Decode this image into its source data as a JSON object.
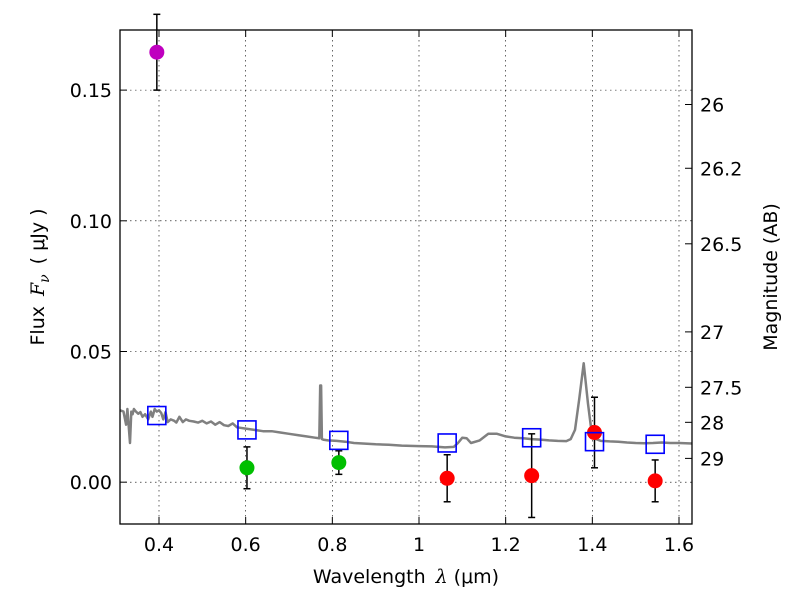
{
  "chart_data": {
    "type": "scatter",
    "xlabel_text": "Wavelength",
    "xlabel_symbol": "λ",
    "xlabel_unit": "(μm)",
    "ylabel_text": "Flux",
    "ylabel_symbol": "F",
    "ylabel_symbol_sub": "ν",
    "ylabel_unit": "( μJy )",
    "y2label": "Magnitude (AB)",
    "xlim": [
      0.31,
      1.63
    ],
    "ylim": [
      -0.016,
      0.173
    ],
    "grid": true,
    "x_ticks": [
      0.4,
      0.6,
      0.8,
      1.0,
      1.2,
      1.4,
      1.6
    ],
    "x_tick_labels": [
      "0.4",
      "0.6",
      "0.8",
      "1",
      "1.2",
      "1.4",
      "1.6"
    ],
    "y_ticks": [
      0.0,
      0.05,
      0.1,
      0.15
    ],
    "y_tick_labels": [
      "0.00",
      "0.05",
      "0.10",
      "0.15"
    ],
    "y2_ticks": [
      {
        "label": "26",
        "flux": 0.1445
      },
      {
        "label": "26.2",
        "flux": 0.1201
      },
      {
        "label": "26.5",
        "flux": 0.0912
      },
      {
        "label": "27",
        "flux": 0.0575
      },
      {
        "label": "27.5",
        "flux": 0.0363
      },
      {
        "label": "28",
        "flux": 0.0229
      },
      {
        "label": "29",
        "flux": 0.0091
      }
    ],
    "colors": {
      "model": "#808080",
      "magenta": "#bf00bf",
      "green": "#00bf00",
      "red": "#ff0000",
      "model_photometry": "#0000ff",
      "errorbar": "#000000"
    },
    "series": [
      {
        "color_key": "magenta",
        "marker": "circle",
        "points": [
          {
            "x": 0.395,
            "y": 0.1645,
            "err": 0.0145
          }
        ]
      },
      {
        "color_key": "green",
        "marker": "circle",
        "points": [
          {
            "x": 0.603,
            "y": 0.0055,
            "err": 0.008
          },
          {
            "x": 0.815,
            "y": 0.0075,
            "err": 0.0045
          }
        ]
      },
      {
        "color_key": "red",
        "marker": "circle",
        "points": [
          {
            "x": 1.065,
            "y": 0.0015,
            "err": 0.009
          },
          {
            "x": 1.26,
            "y": 0.0025,
            "err": 0.016
          },
          {
            "x": 1.405,
            "y": 0.019,
            "err": 0.0135
          },
          {
            "x": 1.545,
            "y": 0.0005,
            "err": 0.008
          }
        ]
      },
      {
        "color_key": "model_photometry",
        "marker": "open-square",
        "points": [
          {
            "x": 0.395,
            "y": 0.0255
          },
          {
            "x": 0.603,
            "y": 0.02
          },
          {
            "x": 0.815,
            "y": 0.016
          },
          {
            "x": 1.065,
            "y": 0.015
          },
          {
            "x": 1.26,
            "y": 0.017
          },
          {
            "x": 1.405,
            "y": 0.0155
          },
          {
            "x": 1.545,
            "y": 0.0145
          }
        ]
      }
    ],
    "model_spectrum": {
      "color_key": "model",
      "x": [
        0.31,
        0.318,
        0.324,
        0.327,
        0.33,
        0.333,
        0.336,
        0.339,
        0.342,
        0.347,
        0.352,
        0.357,
        0.362,
        0.368,
        0.375,
        0.381,
        0.385,
        0.39,
        0.395,
        0.4,
        0.405,
        0.41,
        0.415,
        0.42,
        0.427,
        0.435,
        0.44,
        0.447,
        0.455,
        0.462,
        0.47,
        0.48,
        0.49,
        0.5,
        0.51,
        0.52,
        0.53,
        0.54,
        0.55,
        0.56,
        0.57,
        0.58,
        0.6,
        0.62,
        0.64,
        0.66,
        0.68,
        0.7,
        0.72,
        0.74,
        0.76,
        0.77,
        0.772,
        0.774,
        0.776,
        0.78,
        0.79,
        0.81,
        0.83,
        0.85,
        0.87,
        0.9,
        0.93,
        0.96,
        1.0,
        1.03,
        1.06,
        1.08,
        1.09,
        1.1,
        1.11,
        1.12,
        1.14,
        1.16,
        1.18,
        1.2,
        1.22,
        1.24,
        1.26,
        1.28,
        1.3,
        1.32,
        1.34,
        1.35,
        1.36,
        1.37,
        1.38,
        1.39,
        1.4,
        1.42,
        1.44,
        1.46,
        1.48,
        1.5,
        1.52,
        1.54,
        1.56,
        1.58,
        1.6,
        1.63
      ],
      "y": [
        0.0275,
        0.027,
        0.022,
        0.028,
        0.0215,
        0.015,
        0.027,
        0.026,
        0.028,
        0.027,
        0.0262,
        0.0268,
        0.025,
        0.026,
        0.024,
        0.027,
        0.025,
        0.028,
        0.027,
        0.0275,
        0.0265,
        0.024,
        0.0268,
        0.023,
        0.024,
        0.0235,
        0.0228,
        0.025,
        0.023,
        0.024,
        0.0235,
        0.0232,
        0.0228,
        0.0235,
        0.0225,
        0.0232,
        0.022,
        0.023,
        0.0218,
        0.0215,
        0.0225,
        0.021,
        0.0205,
        0.02,
        0.0195,
        0.0195,
        0.019,
        0.0185,
        0.018,
        0.0175,
        0.017,
        0.0168,
        0.037,
        0.037,
        0.0165,
        0.0162,
        0.016,
        0.0158,
        0.0155,
        0.015,
        0.0148,
        0.0145,
        0.0143,
        0.014,
        0.0138,
        0.0137,
        0.0133,
        0.0135,
        0.015,
        0.017,
        0.0168,
        0.015,
        0.016,
        0.0185,
        0.0185,
        0.0175,
        0.017,
        0.0168,
        0.0165,
        0.0163,
        0.016,
        0.0158,
        0.0157,
        0.0165,
        0.02,
        0.032,
        0.0455,
        0.03,
        0.017,
        0.0158,
        0.0156,
        0.0155,
        0.0152,
        0.015,
        0.0149,
        0.015,
        0.0152,
        0.015,
        0.015,
        0.0148
      ]
    }
  }
}
